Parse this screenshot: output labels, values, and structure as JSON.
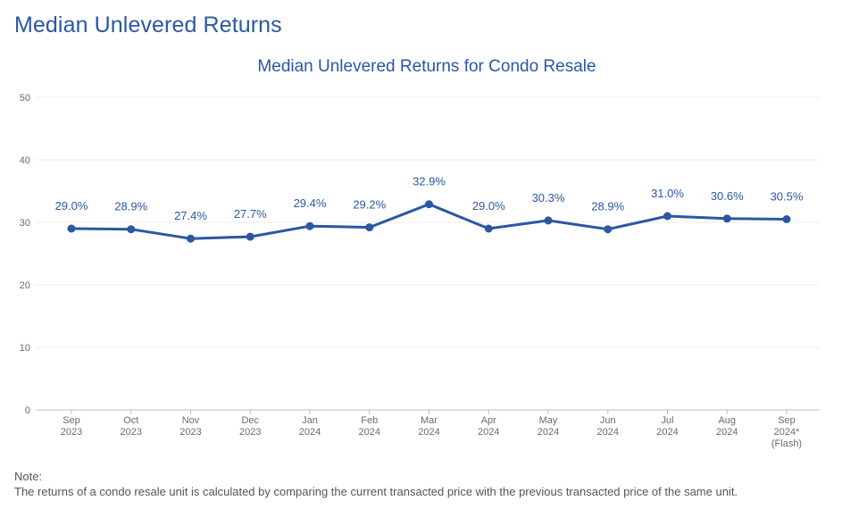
{
  "page": {
    "title": "Median Unlevered Returns"
  },
  "chart_data": {
    "type": "line",
    "title": "Median Unlevered Returns for Condo Resale",
    "xlabel": "",
    "ylabel": "",
    "ylim": [
      0,
      50
    ],
    "yticks": [
      "0",
      "10",
      "20",
      "30",
      "40",
      "50"
    ],
    "ytick_values": [
      0,
      10,
      20,
      30,
      40,
      50
    ],
    "grid": true,
    "categories": [
      [
        "Sep",
        "2023"
      ],
      [
        "Oct",
        "2023"
      ],
      [
        "Nov",
        "2023"
      ],
      [
        "Dec",
        "2023"
      ],
      [
        "Jan",
        "2024"
      ],
      [
        "Feb",
        "2024"
      ],
      [
        "Mar",
        "2024"
      ],
      [
        "Apr",
        "2024"
      ],
      [
        "May",
        "2024"
      ],
      [
        "Jun",
        "2024"
      ],
      [
        "Jul",
        "2024"
      ],
      [
        "Aug",
        "2024"
      ],
      [
        "Sep",
        "2024*",
        "(Flash)"
      ]
    ],
    "series": [
      {
        "name": "Median Unlevered Returns",
        "values": [
          29.0,
          28.9,
          27.4,
          27.7,
          29.4,
          29.2,
          32.9,
          29.0,
          30.3,
          28.9,
          31.0,
          30.6,
          30.5
        ],
        "labels": [
          "29.0%",
          "28.9%",
          "27.4%",
          "27.7%",
          "29.4%",
          "29.2%",
          "32.9%",
          "29.0%",
          "30.3%",
          "28.9%",
          "31.0%",
          "30.6%",
          "30.5%"
        ],
        "color": "#2b57a5"
      }
    ]
  },
  "note": {
    "label": "Note:",
    "text": "The returns of a condo resale unit is calculated by comparing the current transacted price with the previous transacted price of the same unit."
  },
  "colors": {
    "accent": "#2b57a5",
    "grid": "#ececec",
    "axis": "#bdbdbd",
    "tick_text": "#6b6b6b"
  }
}
